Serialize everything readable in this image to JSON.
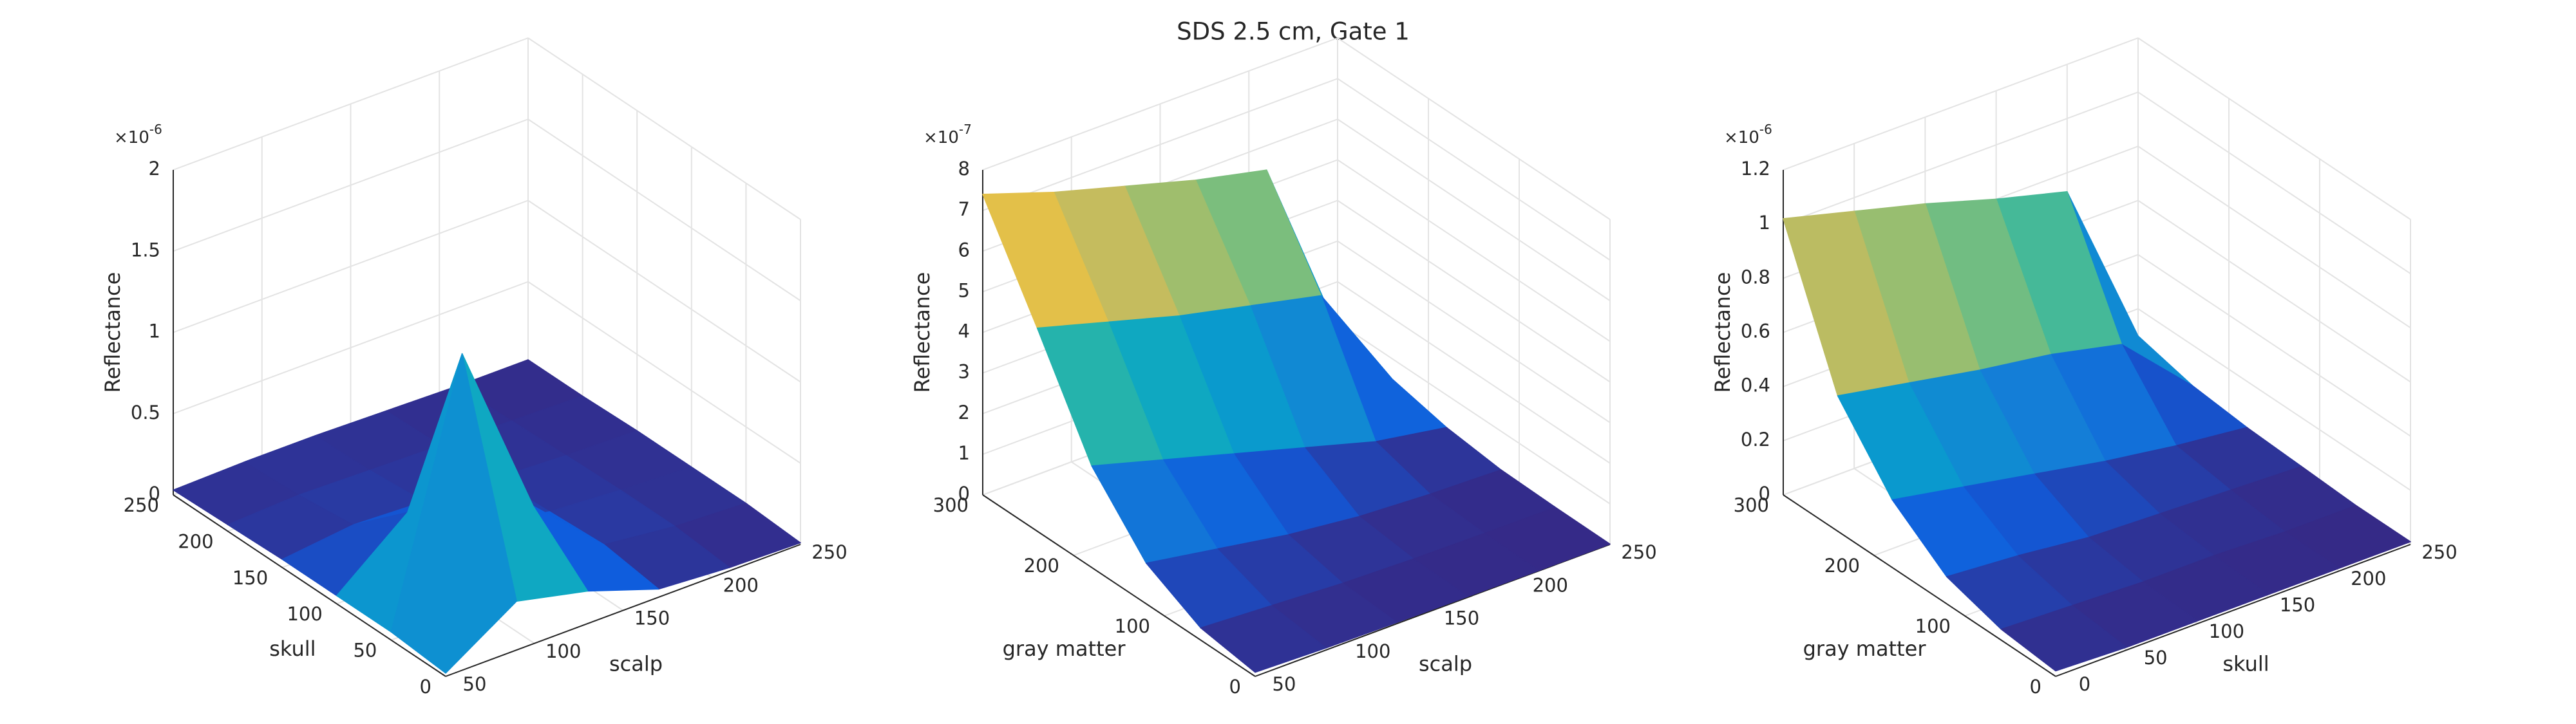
{
  "title": "SDS 2.5 cm, Gate 1",
  "colormap": [
    "#352a87",
    "#0f5cdd",
    "#1481d6",
    "#06a4ca",
    "#2eb7a4",
    "#87bf77",
    "#d1bb59",
    "#fec832",
    "#f9fb0e"
  ],
  "chart_data": [
    {
      "type": "surface",
      "xlabel": "scalp",
      "ylabel": "skull",
      "zlabel": "Reflectance",
      "z_multiplier": "×10",
      "z_exponent": "-6",
      "x": [
        50,
        90,
        130,
        170,
        210,
        250
      ],
      "y": [
        0,
        50,
        100,
        150,
        200,
        250
      ],
      "z": [
        [
          0.02,
          0.3,
          0.2,
          0.05,
          0.02,
          0.01
        ],
        [
          0.05,
          1.6,
          0.5,
          0.1,
          0.05,
          0.03
        ],
        [
          0.05,
          0.4,
          0.15,
          0.08,
          0.05,
          0.03
        ],
        [
          0.05,
          0.1,
          0.08,
          0.06,
          0.04,
          0.03
        ],
        [
          0.04,
          0.06,
          0.05,
          0.04,
          0.03,
          0.02
        ],
        [
          0.03,
          0.04,
          0.04,
          0.03,
          0.02,
          0.02
        ]
      ],
      "xlim": [
        50,
        250
      ],
      "ylim": [
        0,
        250
      ],
      "zlim": [
        0,
        2
      ],
      "xticks": [
        50,
        100,
        150,
        200,
        250
      ],
      "yticks": [
        0,
        50,
        100,
        150,
        200,
        250
      ],
      "zticks": [
        0,
        0.5,
        1,
        1.5,
        2
      ],
      "grid": true
    },
    {
      "type": "surface",
      "xlabel": "scalp",
      "ylabel": "gray matter",
      "zlabel": "Reflectance",
      "z_multiplier": "×10",
      "z_exponent": "-7",
      "x": [
        50,
        90,
        130,
        170,
        210,
        250
      ],
      "y": [
        0,
        60,
        120,
        180,
        240,
        300
      ],
      "z": [
        [
          0.1,
          0.05,
          0.03,
          0.02,
          0.01,
          0.01
        ],
        [
          0.3,
          0.2,
          0.1,
          0.05,
          0.03,
          0.02
        ],
        [
          1.0,
          0.7,
          0.4,
          0.2,
          0.1,
          0.05
        ],
        [
          2.5,
          2.0,
          1.5,
          1.0,
          0.5,
          0.2
        ],
        [
          5.0,
          4.5,
          4.0,
          3.6,
          3.2,
          0.5
        ],
        [
          7.4,
          6.8,
          6.3,
          5.8,
          5.4,
          0.8
        ]
      ],
      "xlim": [
        50,
        250
      ],
      "ylim": [
        0,
        300
      ],
      "zlim": [
        0,
        8
      ],
      "xticks": [
        50,
        100,
        150,
        200,
        250
      ],
      "yticks": [
        0,
        100,
        200,
        300
      ],
      "zticks": [
        0,
        1,
        2,
        3,
        4,
        5,
        6,
        7,
        8
      ],
      "grid": true
    },
    {
      "type": "surface",
      "xlabel": "skull",
      "ylabel": "gray matter",
      "zlabel": "Reflectance",
      "z_multiplier": "×10",
      "z_exponent": "-6",
      "x": [
        0,
        50,
        100,
        150,
        200,
        250
      ],
      "y": [
        0,
        60,
        120,
        180,
        240,
        300
      ],
      "z": [
        [
          0.02,
          0.01,
          0.01,
          0.01,
          0.01,
          0.01
        ],
        [
          0.04,
          0.03,
          0.02,
          0.02,
          0.01,
          0.01
        ],
        [
          0.1,
          0.08,
          0.05,
          0.04,
          0.03,
          0.02
        ],
        [
          0.25,
          0.2,
          0.15,
          0.1,
          0.06,
          0.03
        ],
        [
          0.5,
          0.45,
          0.4,
          0.36,
          0.3,
          0.05
        ],
        [
          1.02,
          0.95,
          0.88,
          0.8,
          0.73,
          0.1
        ]
      ],
      "xlim": [
        0,
        250
      ],
      "ylim": [
        0,
        300
      ],
      "zlim": [
        0,
        1.2
      ],
      "xticks": [
        0,
        50,
        100,
        150,
        200,
        250
      ],
      "yticks": [
        0,
        100,
        200,
        300
      ],
      "zticks": [
        0,
        0.2,
        0.4,
        0.6,
        0.8,
        1,
        1.2
      ],
      "grid": true
    }
  ]
}
